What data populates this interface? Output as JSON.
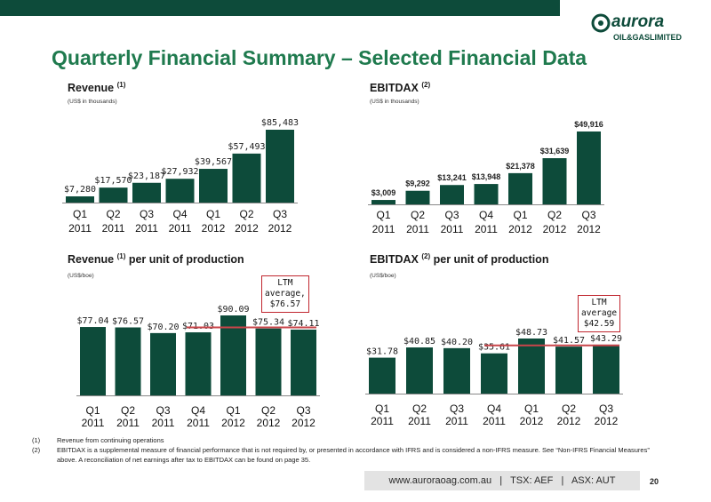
{
  "header": {
    "title": "Quarterly Financial Summary – Selected Financial Data"
  },
  "logo": {
    "brand": "aurora",
    "tagline": "OIL&GASLIMITED",
    "color": "#0d4b3a"
  },
  "colors": {
    "bar": "#0d4b3a",
    "ltm_line": "#c9454a",
    "title": "#1f7a4e"
  },
  "chart_data": [
    {
      "type": "bar",
      "title": "Revenue",
      "title_sup": "(1)",
      "subtitle": "(US$ in thousands)",
      "categories": [
        [
          "Q1",
          "2011"
        ],
        [
          "Q2",
          "2011"
        ],
        [
          "Q3",
          "2011"
        ],
        [
          "Q4",
          "2011"
        ],
        [
          "Q1",
          "2012"
        ],
        [
          "Q2",
          "2012"
        ],
        [
          "Q3",
          "2012"
        ]
      ],
      "values": [
        7280,
        17570,
        23187,
        27932,
        39567,
        57493,
        85483
      ],
      "value_labels": [
        "$7,280",
        "$17,570",
        "$23,187",
        "$27,932",
        "$39,567",
        "$57,493",
        "$85,483"
      ],
      "ylim": [
        0,
        85483
      ],
      "grid": false
    },
    {
      "type": "bar",
      "title": "EBITDAX",
      "title_sup": "(2)",
      "subtitle": "(US$ in thousands)",
      "categories": [
        [
          "Q1",
          "2011"
        ],
        [
          "Q2",
          "2011"
        ],
        [
          "Q3",
          "2011"
        ],
        [
          "Q4",
          "2011"
        ],
        [
          "Q1",
          "2012"
        ],
        [
          "Q2",
          "2012"
        ],
        [
          "Q3",
          "2012"
        ]
      ],
      "values": [
        3009,
        9292,
        13241,
        13948,
        21378,
        31639,
        49916
      ],
      "value_labels": [
        "$3,009",
        "$9,292",
        "$13,241",
        "$13,948",
        "$21,378",
        "$31,639",
        "$49,916"
      ],
      "ylim": [
        0,
        49916
      ],
      "grid": false
    },
    {
      "type": "bar",
      "title": "Revenue",
      "title_sup": "(1)",
      "title_suffix": " per unit of production",
      "subtitle": "(US$/boe)",
      "categories": [
        [
          "Q1",
          "2011"
        ],
        [
          "Q2",
          "2011"
        ],
        [
          "Q3",
          "2011"
        ],
        [
          "Q4",
          "2011"
        ],
        [
          "Q1",
          "2012"
        ],
        [
          "Q2",
          "2012"
        ],
        [
          "Q3",
          "2012"
        ]
      ],
      "values": [
        77.04,
        76.57,
        70.2,
        71.03,
        90.09,
        75.34,
        74.11
      ],
      "value_labels": [
        "$77.04",
        "$76.57",
        "$70.20",
        "$71.03",
        "$90.09",
        "$75.34",
        "$74.11"
      ],
      "ylim": [
        0,
        90.09
      ],
      "grid": false,
      "annotation": {
        "lines": [
          "LTM",
          "average,",
          "$76.57"
        ],
        "value": 76.57
      }
    },
    {
      "type": "bar",
      "title": "EBITDAX",
      "title_sup": "(2)",
      "title_suffix": " per unit of production",
      "subtitle": "(US$/boe)",
      "categories": [
        [
          "Q1",
          "2011"
        ],
        [
          "Q2",
          "2011"
        ],
        [
          "Q3",
          "2011"
        ],
        [
          "Q4",
          "2011"
        ],
        [
          "Q1",
          "2012"
        ],
        [
          "Q2",
          "2012"
        ],
        [
          "Q3",
          "2012"
        ]
      ],
      "values": [
        31.78,
        40.85,
        40.2,
        35.61,
        48.73,
        41.57,
        43.29
      ],
      "value_labels": [
        "$31.78",
        "$40.85",
        "$40.20",
        "$35.61",
        "$48.73",
        "$41.57",
        "$43.29"
      ],
      "ylim": [
        0,
        48.73
      ],
      "grid": false,
      "annotation": {
        "lines": [
          "LTM",
          "average",
          "$42.59"
        ],
        "value": 42.59
      }
    }
  ],
  "footnotes": [
    {
      "num": "(1)",
      "text": "Revenue from continuing operations"
    },
    {
      "num": "(2)",
      "text": "EBITDAX is a supplemental measure of financial performance that is not required by, or presented in accordance with IFRS and is considered a non-IFRS measure. See “Non-IFRS Financial Measures” above. A reconciliation of net earnings after tax to EBITDAX can be found on page 35."
    }
  ],
  "footer": {
    "text": "www.auroraoag.com.au   |   TSX: AEF   |   ASX: AUT",
    "page": "20"
  }
}
